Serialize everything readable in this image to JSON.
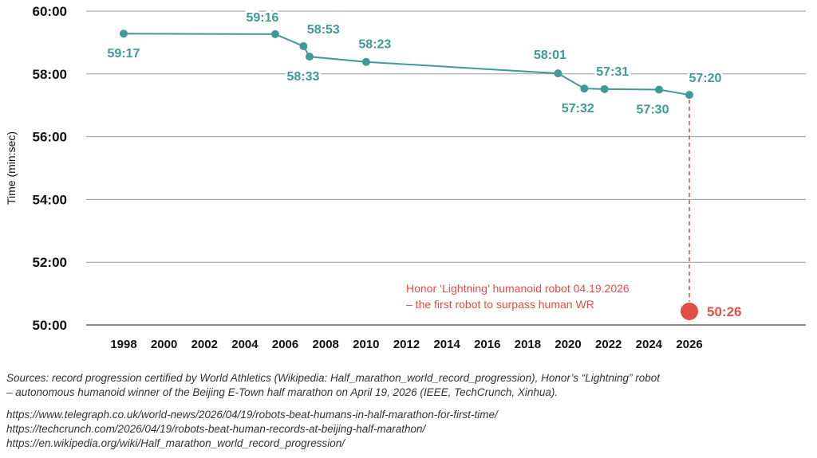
{
  "chart_data": {
    "type": "line",
    "ylabel": "Time (min:sec)",
    "ylim": [
      "50:00",
      "60:00"
    ],
    "y_ticks": [
      "50:00",
      "52:00",
      "54:00",
      "56:00",
      "58:00",
      "60:00"
    ],
    "x_ticks": [
      "1998",
      "2000",
      "2002",
      "2004",
      "2006",
      "2008",
      "2010",
      "2012",
      "2014",
      "2016",
      "2018",
      "2020",
      "2022",
      "2024",
      "2026"
    ],
    "grid": "horizontal",
    "series": [
      {
        "color": "#3e9a95",
        "points": [
          {
            "x": 1998.0,
            "time": "59:17"
          },
          {
            "x": 2005.5,
            "time": "59:16"
          },
          {
            "x": 2006.9,
            "time": "58:53"
          },
          {
            "x": 2007.2,
            "time": "58:33"
          },
          {
            "x": 2010.0,
            "time": "58:23"
          },
          {
            "x": 2019.5,
            "time": "58:01"
          },
          {
            "x": 2020.8,
            "time": "57:32"
          },
          {
            "x": 2021.8,
            "time": "57:31"
          },
          {
            "x": 2024.5,
            "time": "57:30"
          },
          {
            "x": 2026.0,
            "time": "57:20"
          }
        ]
      }
    ],
    "robot_point": {
      "x": 2026.0,
      "time": "50:26",
      "color": "#e04f47"
    },
    "annotation": [
      "Honor ‘Lightning’ humanoid robot 04.19.2026",
      "– the first robot to surpass human WR"
    ]
  },
  "footer": {
    "sources": [
      "Sources: record progression certified by World Athletics (Wikipedia: Half_marathon_world_record_progression), Honor’s “Lightning” robot",
      "– autonomous humanoid winner of the Beijing E-Town half marathon on April 19, 2026 (IEEE, TechCrunch, Xinhua)."
    ],
    "links": [
      "https://www.telegraph.co.uk/world-news/2026/04/19/robots-beat-humans-in-half-marathon-for-first-time/",
      "https://techcrunch.com/2026/04/19/robots-beat-human-records-at-beijing-half-marathon/",
      "https://en.wikipedia.org/wiki/Half_marathon_world_record_progression/"
    ]
  }
}
